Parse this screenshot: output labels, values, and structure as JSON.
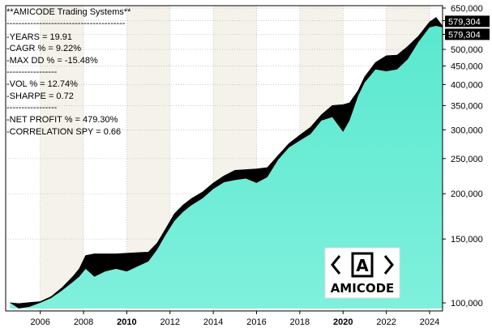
{
  "stats": {
    "header": "**AMICODE Trading Systems**",
    "separator_long": "----------------------------------------",
    "separator_short": "-----------------",
    "years": "-YEARS  = 19.91",
    "cagr": "-CAGR % = 9.22%",
    "maxdd": "-MAX DD %   = -15.48%",
    "vol": "-VOL % = 12.74%",
    "sharpe": "-SHARPE = 0.72",
    "net_profit": "-NET PROFIT % = 479.30%",
    "correlation": "-CORRELATION SPY  = 0.66"
  },
  "last_value_labels": [
    "579,304",
    "579,304"
  ],
  "logo": {
    "brand": "AMICODE",
    "mark": "A"
  },
  "colors": {
    "equity_fill": "#5ae8cf",
    "equity_fill_light": "#7ff0dc",
    "drawdown": "#000000",
    "background_alt": "#f4f2ea",
    "grid": "#b8b8b8",
    "label_bg": "#000000"
  },
  "chart_data": {
    "type": "area",
    "title": "",
    "xlabel": "",
    "ylabel": "",
    "y_scale": "log",
    "xlim": [
      2004.4,
      2024.6
    ],
    "ylim": [
      95000,
      660000
    ],
    "grid": true,
    "x_ticks": [
      {
        "value": 2006,
        "label": "2006",
        "bold": false
      },
      {
        "value": 2008,
        "label": "2008",
        "bold": false
      },
      {
        "value": 2010,
        "label": "2010",
        "bold": true
      },
      {
        "value": 2012,
        "label": "2012",
        "bold": false
      },
      {
        "value": 2014,
        "label": "2014",
        "bold": false
      },
      {
        "value": 2016,
        "label": "2016",
        "bold": false
      },
      {
        "value": 2018,
        "label": "2018",
        "bold": false
      },
      {
        "value": 2020,
        "label": "2020",
        "bold": true
      },
      {
        "value": 2022,
        "label": "2022",
        "bold": false
      },
      {
        "value": 2024,
        "label": "2024",
        "bold": false
      }
    ],
    "y_ticks": [
      {
        "value": 100000,
        "label": "100,000"
      },
      {
        "value": 150000,
        "label": "150,000"
      },
      {
        "value": 200000,
        "label": "200,000"
      },
      {
        "value": 250000,
        "label": "250,000"
      },
      {
        "value": 300000,
        "label": "300,000"
      },
      {
        "value": 350000,
        "label": "350,000"
      },
      {
        "value": 400000,
        "label": "400,000"
      },
      {
        "value": 450000,
        "label": "450,000"
      },
      {
        "value": 500000,
        "label": "500,000"
      },
      {
        "value": 550000,
        "label": "550,000"
      },
      {
        "value": 600000,
        "label": "600,000"
      },
      {
        "value": 650000,
        "label": "650,000"
      }
    ],
    "series": [
      {
        "equity": [
          [
            2004.6,
            100000
          ],
          [
            2005.0,
            99500
          ],
          [
            2005.5,
            100200
          ],
          [
            2006.0,
            100800
          ],
          [
            2006.5,
            104000
          ],
          [
            2007.0,
            110000
          ],
          [
            2007.5,
            118000
          ],
          [
            2007.8,
            124000
          ],
          [
            2008.1,
            135000
          ],
          [
            2008.5,
            136500
          ],
          [
            2009.0,
            136500
          ],
          [
            2009.5,
            136500
          ],
          [
            2010.0,
            137000
          ],
          [
            2010.5,
            137500
          ],
          [
            2011.0,
            138000
          ],
          [
            2011.4,
            146000
          ],
          [
            2011.8,
            160000
          ],
          [
            2012.2,
            176000
          ],
          [
            2012.6,
            186000
          ],
          [
            2013.0,
            194000
          ],
          [
            2013.5,
            202000
          ],
          [
            2014.0,
            214000
          ],
          [
            2014.5,
            224000
          ],
          [
            2015.0,
            232000
          ],
          [
            2015.5,
            233000
          ],
          [
            2016.0,
            234000
          ],
          [
            2016.5,
            236000
          ],
          [
            2017.0,
            255000
          ],
          [
            2017.5,
            275000
          ],
          [
            2018.0,
            290000
          ],
          [
            2018.5,
            305000
          ],
          [
            2019.0,
            330000
          ],
          [
            2019.5,
            350000
          ],
          [
            2020.0,
            352000
          ],
          [
            2020.3,
            356000
          ],
          [
            2020.7,
            385000
          ],
          [
            2021.0,
            420000
          ],
          [
            2021.5,
            460000
          ],
          [
            2022.0,
            480000
          ],
          [
            2022.5,
            482000
          ],
          [
            2023.0,
            510000
          ],
          [
            2023.5,
            545000
          ],
          [
            2024.0,
            595000
          ],
          [
            2024.3,
            612000
          ],
          [
            2024.6,
            579304
          ]
        ],
        "drawdown_lows": [
          [
            2004.6,
            100000
          ],
          [
            2005.0,
            96500
          ],
          [
            2005.5,
            97500
          ],
          [
            2006.0,
            100000
          ],
          [
            2006.5,
            103000
          ],
          [
            2007.0,
            108000
          ],
          [
            2007.5,
            114000
          ],
          [
            2007.8,
            118000
          ],
          [
            2008.1,
            124000
          ],
          [
            2008.5,
            118000
          ],
          [
            2009.0,
            122000
          ],
          [
            2009.5,
            124000
          ],
          [
            2010.0,
            122000
          ],
          [
            2010.5,
            126000
          ],
          [
            2011.0,
            130000
          ],
          [
            2011.4,
            140000
          ],
          [
            2011.8,
            154000
          ],
          [
            2012.2,
            168000
          ],
          [
            2012.6,
            178000
          ],
          [
            2013.0,
            186000
          ],
          [
            2013.5,
            194000
          ],
          [
            2014.0,
            206000
          ],
          [
            2014.5,
            215000
          ],
          [
            2015.0,
            218000
          ],
          [
            2015.5,
            220000
          ],
          [
            2016.0,
            214000
          ],
          [
            2016.5,
            222000
          ],
          [
            2017.0,
            248000
          ],
          [
            2017.5,
            268000
          ],
          [
            2018.0,
            280000
          ],
          [
            2018.5,
            292000
          ],
          [
            2019.0,
            318000
          ],
          [
            2019.5,
            325000
          ],
          [
            2020.0,
            296000
          ],
          [
            2020.3,
            318000
          ],
          [
            2020.7,
            372000
          ],
          [
            2021.0,
            405000
          ],
          [
            2021.5,
            440000
          ],
          [
            2022.0,
            435000
          ],
          [
            2022.5,
            440000
          ],
          [
            2023.0,
            470000
          ],
          [
            2023.5,
            525000
          ],
          [
            2024.0,
            575000
          ],
          [
            2024.3,
            580000
          ],
          [
            2024.6,
            575000
          ]
        ]
      }
    ]
  }
}
